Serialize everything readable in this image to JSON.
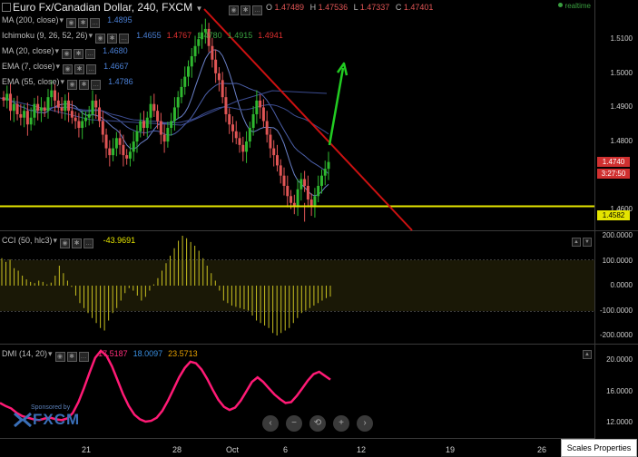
{
  "header": {
    "title": "Euro Fx/Canadian Dollar, 240, FXCM",
    "ohlc": [
      {
        "k": "O",
        "v": "1.47489"
      },
      {
        "k": "H",
        "v": "1.47536"
      },
      {
        "k": "L",
        "v": "1.47337"
      },
      {
        "k": "C",
        "v": "1.47401"
      }
    ],
    "realtime": "realtime"
  },
  "indicators": [
    {
      "label": "MA (200, close)",
      "values": [
        "1.4895"
      ],
      "colors": [
        "#4a7fd4"
      ]
    },
    {
      "label": "Ichimoku (9, 26, 52, 26)",
      "values": [
        "1.4655",
        "1.4767",
        "1.4780",
        "1.4915",
        "1.4941"
      ],
      "colors": [
        "#4a7fd4",
        "#e03030",
        "#3aa040",
        "#3aa040",
        "#e03030"
      ]
    },
    {
      "label": "MA (20, close)",
      "values": [
        "1.4680"
      ],
      "colors": [
        "#4a7fd4"
      ]
    },
    {
      "label": "EMA (7, close)",
      "values": [
        "1.4667"
      ],
      "colors": [
        "#4a7fd4"
      ]
    },
    {
      "label": "EMA (55, close)",
      "values": [
        "1.4786"
      ],
      "colors": [
        "#4a7fd4"
      ]
    }
  ],
  "price_axis": {
    "ticks": [
      "1.5100",
      "1.5000",
      "1.4900",
      "1.4800",
      "1.4600"
    ],
    "tags": [
      {
        "text": "1.4740",
        "bg": "#d03030",
        "fg": "#ffffff"
      },
      {
        "text": "3:27:50",
        "bg": "#d03030",
        "fg": "#ffffff"
      },
      {
        "text": "1.4582",
        "bg": "#e4e400",
        "fg": "#000000"
      }
    ]
  },
  "cci": {
    "label": "CCI (50, hlc3)",
    "value": "-43.9691",
    "value_color": "#e6e600",
    "ticks": [
      "200.0000",
      "100.0000",
      "0.0000",
      "-100.0000",
      "-200.0000"
    ]
  },
  "dmi": {
    "label": "DMI (14, 20)",
    "values": [
      "17.5187",
      "18.0097",
      "23.5713"
    ],
    "colors": [
      "#ff2d7a",
      "#3a8fe0",
      "#e6a000"
    ],
    "ticks": [
      "20.0000",
      "16.0000",
      "12.0000"
    ]
  },
  "sponsor": {
    "text": "Sponsored by",
    "brand": "FXCM"
  },
  "dates": [
    "21",
    "28",
    "Oct",
    "6",
    "12",
    "19",
    "26"
  ],
  "nav_buttons": [
    "‹",
    "−",
    "⟲",
    "+",
    "›"
  ],
  "scales_properties": "Scales Properties",
  "colors": {
    "up": "#2fb82f",
    "down": "#e05555",
    "trend": "#cc1111",
    "support": "#e6e600",
    "arrow": "#22cc22",
    "cci": "#c8c020",
    "dmi": "#ff1a75"
  },
  "chart_data": [
    {
      "type": "candlestick",
      "title": "Euro Fx/Canadian Dollar, 240, FXCM",
      "x_ticks": [
        "21",
        "28",
        "Oct",
        "6",
        "12",
        "19",
        "26"
      ],
      "ylim": [
        1.4545,
        1.5175
      ],
      "support_level": 1.4582,
      "last_price": 1.474,
      "series": [
        {
          "name": "price",
          "values": [
            1.492,
            1.494,
            1.489,
            1.491,
            1.488,
            1.487,
            1.489,
            1.485,
            1.487,
            1.491,
            1.489,
            1.49,
            1.489,
            1.493,
            1.495,
            1.492,
            1.49,
            1.489,
            1.492,
            1.489,
            1.487,
            1.486,
            1.484,
            1.486,
            1.487,
            1.488,
            1.492,
            1.49,
            1.486,
            1.482,
            1.478,
            1.476,
            1.478,
            1.481,
            1.479,
            1.476,
            1.475,
            1.477,
            1.48,
            1.483,
            1.486,
            1.484,
            1.487,
            1.491,
            1.489,
            1.486,
            1.482,
            1.48,
            1.484,
            1.486,
            1.49,
            1.493,
            1.496,
            1.499,
            1.502,
            1.505,
            1.508,
            1.51,
            1.512,
            1.513,
            1.508,
            1.504,
            1.5,
            1.498,
            1.493,
            1.488,
            1.485,
            1.483,
            1.481,
            1.479,
            1.477,
            1.48,
            1.484,
            1.488,
            1.492,
            1.49,
            1.486,
            1.482,
            1.478,
            1.476,
            1.473,
            1.47,
            1.467,
            1.464,
            1.462,
            1.461,
            1.466,
            1.469,
            1.467,
            1.463,
            1.461,
            1.464,
            1.467,
            1.47,
            1.472,
            1.474
          ]
        }
      ]
    },
    {
      "type": "bar",
      "title": "CCI (50, hlc3)",
      "ylim": [
        -200,
        200
      ],
      "series": [
        {
          "name": "CCI",
          "values": [
            110,
            95,
            105,
            70,
            60,
            40,
            25,
            15,
            10,
            20,
            15,
            5,
            12,
            40,
            80,
            50,
            20,
            -5,
            -40,
            -70,
            -90,
            -110,
            -130,
            -150,
            -170,
            -180,
            -140,
            -110,
            -90,
            -60,
            -30,
            -10,
            -20,
            -40,
            -60,
            -45,
            -20,
            5,
            30,
            60,
            90,
            120,
            150,
            180,
            200,
            190,
            175,
            160,
            140,
            110,
            80,
            50,
            20,
            -20,
            -60,
            -70,
            -80,
            -85,
            -90,
            -95,
            -100,
            -120,
            -140,
            -150,
            -160,
            -170,
            -190,
            -200,
            -190,
            -180,
            -170,
            -150,
            -130,
            -110,
            -100,
            -90,
            -80,
            -70,
            -60,
            -50,
            -44
          ]
        }
      ]
    },
    {
      "type": "line",
      "title": "DMI (14, 20)",
      "ylim": [
        10,
        22
      ],
      "series": [
        {
          "name": "ADX",
          "values": [
            14.5,
            14.1,
            13.8,
            13.2,
            12.8,
            12.6,
            12.4,
            12.3,
            12.5,
            12.6,
            12.4,
            12.3,
            12.5,
            13.2,
            14.6,
            16.4,
            18.4,
            20.3,
            21.2,
            20.6,
            19.2,
            17.4,
            15.6,
            14.1,
            13.0,
            12.4,
            12.1,
            12.2,
            12.6,
            13.5,
            14.8,
            16.3,
            17.8,
            19.0,
            19.8,
            19.6,
            18.8,
            17.6,
            16.2,
            14.9,
            14.0,
            13.6,
            13.9,
            14.8,
            16.0,
            17.2,
            17.8,
            17.2,
            16.4,
            15.6,
            15.0,
            14.5,
            14.6,
            15.4,
            16.4,
            17.4,
            18.2,
            18.5,
            18.0,
            17.5
          ]
        }
      ]
    }
  ]
}
